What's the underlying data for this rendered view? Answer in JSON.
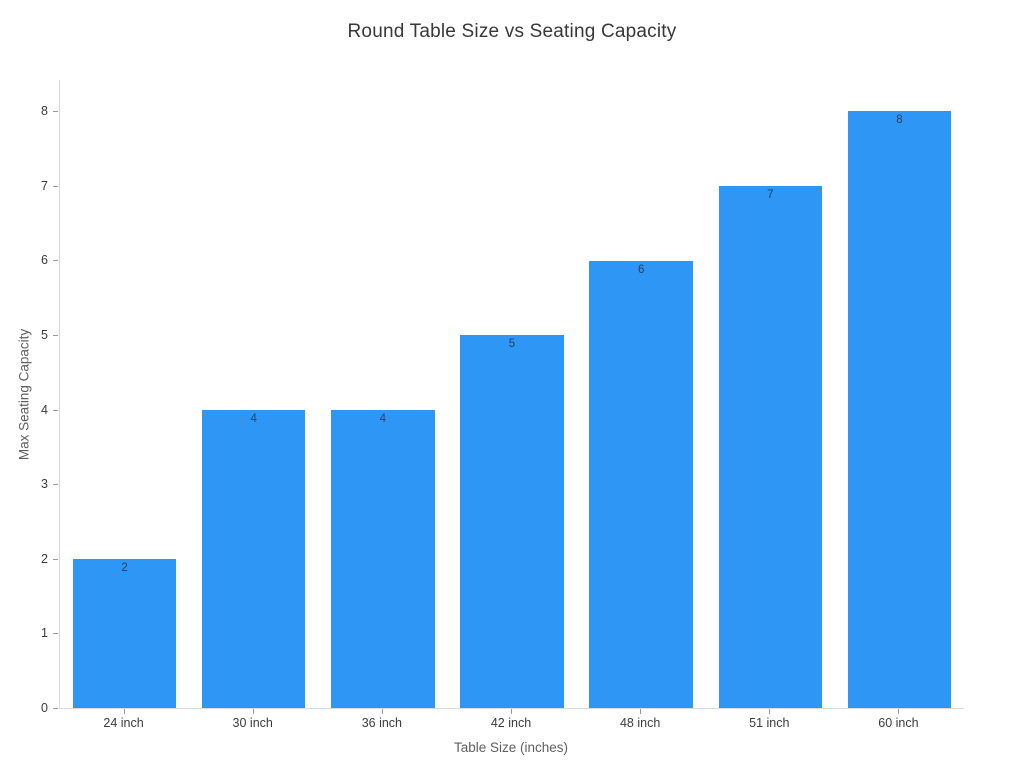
{
  "chart_data": {
    "type": "bar",
    "title": "Round Table Size vs Seating Capacity",
    "xlabel": "Table Size (inches)",
    "ylabel": "Max Seating Capacity",
    "categories": [
      "24 inch",
      "30 inch",
      "36 inch",
      "42 inch",
      "48 inch",
      "51 inch",
      "60 inch"
    ],
    "values": [
      2,
      4,
      4,
      5,
      6,
      7,
      8
    ],
    "bar_labels": [
      "2",
      "4",
      "4",
      "5",
      "6",
      "7",
      "8"
    ],
    "ylim": [
      0,
      8.42
    ],
    "yticks": [
      0,
      1,
      2,
      3,
      4,
      5,
      6,
      7,
      8
    ],
    "grid": false,
    "legend": "none",
    "colors": {
      "bar": "#2E96F5",
      "bar_label_text": "#2a3f5f",
      "axis_line": "#d9d9d9",
      "tick_mark": "#9a9a9a",
      "tick_label_text": "#3b3b3b",
      "axis_title_text": "#606060",
      "title_text": "#383838",
      "background": "#ffffff"
    },
    "bar_width_fraction": 0.8
  }
}
